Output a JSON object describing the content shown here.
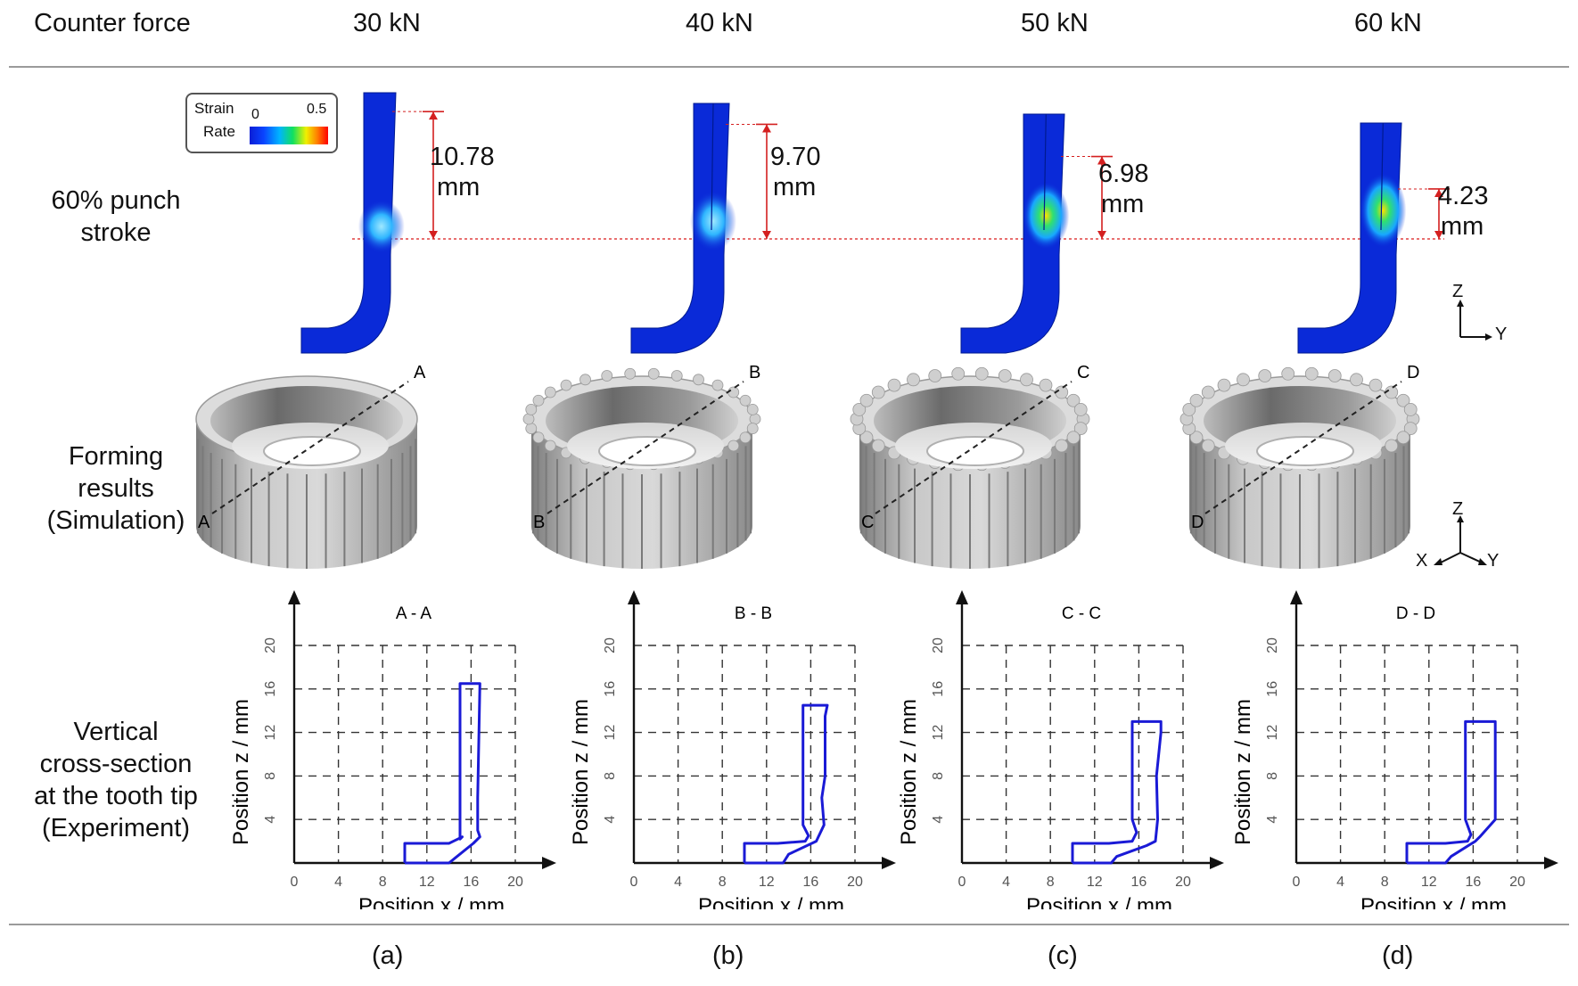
{
  "header": {
    "label": "Counter force",
    "forces": [
      "30 kN",
      "40 kN",
      "50 kN",
      "60 kN"
    ]
  },
  "rows": {
    "stroke": [
      "60% punch",
      "stroke"
    ],
    "forming": [
      "Forming",
      "results",
      "(Simulation)"
    ],
    "section": [
      "Vertical",
      "cross-section",
      "at the tooth tip",
      "(Experiment)"
    ]
  },
  "legend": {
    "title_line1": "Strain",
    "title_line2": "Rate",
    "min": "0",
    "max": "0.5"
  },
  "colors": {
    "line": "#1a1ad6",
    "mesh": "#0a2ad8",
    "dim": "#d42020",
    "dash": "#222222"
  },
  "axes_labels": {
    "z": "Z",
    "y": "Y",
    "x": "X"
  },
  "panels": [
    {
      "id": "a",
      "caption": "(a)",
      "height_value": "10.78",
      "height_unit": "mm",
      "height_mm": 10.78,
      "section_name": "A - A",
      "cut_a": "A",
      "cut_b": "A"
    },
    {
      "id": "b",
      "caption": "(b)",
      "height_value": "9.70",
      "height_unit": "mm",
      "height_mm": 9.7,
      "section_name": "B - B",
      "cut_a": "B",
      "cut_b": "B"
    },
    {
      "id": "c",
      "caption": "(c)",
      "height_value": "6.98",
      "height_unit": "mm",
      "height_mm": 6.98,
      "section_name": "C - C",
      "cut_a": "C",
      "cut_b": "C"
    },
    {
      "id": "d",
      "caption": "(d)",
      "height_value": "4.23",
      "height_unit": "mm",
      "height_mm": 4.23,
      "section_name": "D - D",
      "cut_a": "D",
      "cut_b": "D"
    }
  ],
  "chart_data": [
    {
      "type": "line",
      "title": "A - A",
      "xlabel": "Position x / mm",
      "ylabel": "Position z / mm",
      "xlim": [
        0,
        20
      ],
      "ylim": [
        0,
        20
      ],
      "xticks": [
        "0",
        "4",
        "8",
        "12",
        "16",
        "20"
      ],
      "yticks": [
        "4",
        "8",
        "12",
        "16",
        "20"
      ],
      "grid": true,
      "series": [
        {
          "x": [
            10,
            10,
            14,
            14.8,
            15.2,
            15,
            15,
            16.8,
            16.6,
            16.6,
            16.8,
            16.2,
            14,
            14,
            10
          ],
          "y": [
            0,
            1.8,
            1.8,
            2.2,
            2.4,
            2.2,
            16.5,
            16.5,
            6,
            3,
            2.4,
            1.8,
            0,
            0,
            0
          ]
        }
      ]
    },
    {
      "type": "line",
      "title": "B - B",
      "xlabel": "Position x / mm",
      "ylabel": "Position z / mm",
      "xlim": [
        0,
        20
      ],
      "ylim": [
        0,
        20
      ],
      "xticks": [
        "0",
        "4",
        "8",
        "12",
        "16",
        "20"
      ],
      "yticks": [
        "4",
        "8",
        "12",
        "16",
        "20"
      ],
      "grid": true,
      "series": [
        {
          "x": [
            10,
            10,
            13,
            15.5,
            15.8,
            15.3,
            15.3,
            17.5,
            17.3,
            17.3,
            17.0,
            17.2,
            16.5,
            14,
            13.5,
            10
          ],
          "y": [
            0,
            1.8,
            1.8,
            2.0,
            2.5,
            3.5,
            14.5,
            14.5,
            13.5,
            8,
            6,
            3.5,
            2.0,
            0.8,
            0,
            0
          ]
        }
      ]
    },
    {
      "type": "line",
      "title": "C - C",
      "xlabel": "Position x / mm",
      "ylabel": "Position z / mm",
      "xlim": [
        0,
        20
      ],
      "ylim": [
        0,
        20
      ],
      "xticks": [
        "0",
        "4",
        "8",
        "12",
        "16",
        "20"
      ],
      "yticks": [
        "4",
        "8",
        "12",
        "16",
        "20"
      ],
      "grid": true,
      "series": [
        {
          "x": [
            10,
            10,
            13.3,
            15.4,
            15.8,
            15.4,
            15.4,
            18.0,
            18.0,
            17.6,
            17.7,
            17.5,
            16.7,
            14,
            13.5,
            10
          ],
          "y": [
            0,
            1.8,
            1.8,
            2.0,
            2.8,
            4,
            13,
            13,
            12,
            8,
            4,
            2.0,
            1.6,
            0.6,
            0,
            0
          ]
        }
      ]
    },
    {
      "type": "line",
      "title": "D - D",
      "xlabel": "Position x / mm",
      "ylabel": "Position z / mm",
      "xlim": [
        0,
        20
      ],
      "ylim": [
        0,
        20
      ],
      "xticks": [
        "0",
        "4",
        "8",
        "12",
        "16",
        "20"
      ],
      "yticks": [
        "4",
        "8",
        "12",
        "16",
        "20"
      ],
      "grid": true,
      "series": [
        {
          "x": [
            10,
            10,
            13.5,
            15.5,
            15.8,
            15.3,
            15.3,
            18.0,
            18.0,
            16.6,
            16.2,
            14,
            13.5,
            10
          ],
          "y": [
            0,
            1.8,
            1.8,
            2.0,
            2.6,
            4,
            13,
            13,
            4,
            2.4,
            2.0,
            0.6,
            0,
            0
          ]
        }
      ]
    }
  ]
}
